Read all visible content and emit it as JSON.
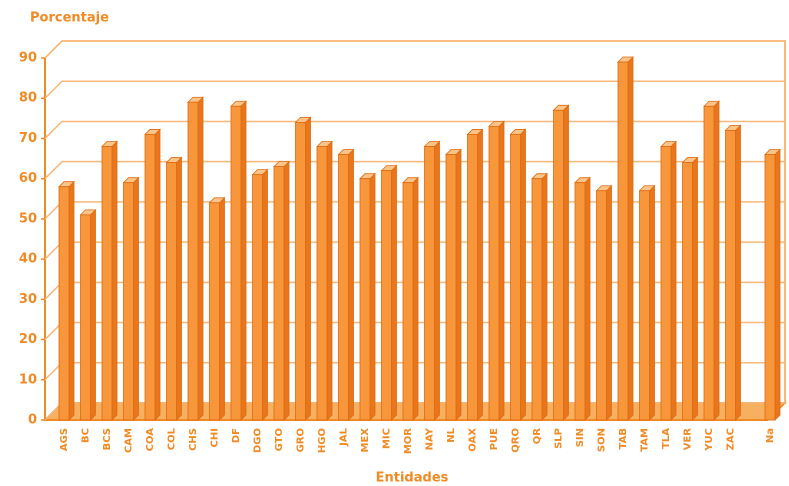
{
  "chart_data": {
    "type": "bar",
    "title": "Porcentaje",
    "x_label": "Entidades",
    "categories": [
      "AGS",
      "BC",
      "BCS",
      "CAM",
      "COA",
      "COL",
      "CHS",
      "CHI",
      "DF",
      "DGO",
      "GTO",
      "GRO",
      "HGO",
      "JAL",
      "MEX",
      "MIC",
      "MOR",
      "NAY",
      "NL",
      "OAX",
      "PUE",
      "QRO",
      "QR",
      "SLP",
      "SIN",
      "SON",
      "TAB",
      "TAM",
      "TLA",
      "VER",
      "YUC",
      "ZAC",
      "Na"
    ],
    "values": [
      58,
      51,
      68,
      59,
      71,
      64,
      79,
      54,
      78,
      61,
      63,
      74,
      68,
      66,
      60,
      62,
      59,
      68,
      66,
      71,
      73,
      71,
      60,
      77,
      59,
      57,
      89,
      57,
      68,
      64,
      78,
      72,
      66
    ],
    "color": "#f7963a",
    "ylim": [
      0,
      90
    ],
    "yticks": [
      0,
      10,
      20,
      30,
      40,
      50,
      60,
      70,
      80,
      90
    ],
    "grid": true
  }
}
